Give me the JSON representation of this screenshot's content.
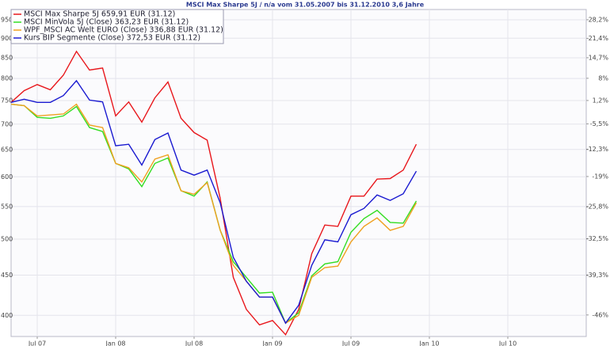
{
  "chart_data": {
    "type": "line",
    "title": "MSCI Max Sharpe 5J / n/a vom 31.05.2007 bis 31.12.2010 3,6 Jahre",
    "x": [
      "2007-05",
      "2007-06",
      "2007-07",
      "2007-08",
      "2007-09",
      "2007-10",
      "2007-11",
      "2007-12",
      "2008-01",
      "2008-02",
      "2008-03",
      "2008-04",
      "2008-05",
      "2008-06",
      "2008-07",
      "2008-08",
      "2008-09",
      "2008-10",
      "2008-11",
      "2008-12",
      "2009-01",
      "2009-02",
      "2009-03",
      "2009-04",
      "2009-05",
      "2009-06",
      "2009-07",
      "2009-08",
      "2009-09",
      "2009-10",
      "2009-11",
      "2009-12"
    ],
    "xlim": [
      "2007-05",
      "2011-01"
    ],
    "xticks": [
      {
        "value": "2007-07",
        "label": "Jul 07"
      },
      {
        "value": "2008-01",
        "label": "Jan 08"
      },
      {
        "value": "2008-07",
        "label": "Jul 08"
      },
      {
        "value": "2009-01",
        "label": "Jan 09"
      },
      {
        "value": "2009-07",
        "label": "Jul 09"
      },
      {
        "value": "2010-01",
        "label": "Jan 10"
      },
      {
        "value": "2010-07",
        "label": "Jul 10"
      }
    ],
    "ylim": [
      376,
      979
    ],
    "ylog": true,
    "yticks": [
      400,
      450,
      500,
      550,
      600,
      650,
      700,
      750,
      800,
      850,
      900,
      950
    ],
    "y2lim": [
      -49.3,
      32.1
    ],
    "y2log": true,
    "y2ticks": [
      {
        "value": -46,
        "label": "-46%"
      },
      {
        "value": -39.3,
        "label": "-39,3%"
      },
      {
        "value": -32.5,
        "label": "-32,5%"
      },
      {
        "value": -25.8,
        "label": "-25,8%"
      },
      {
        "value": -19,
        "label": "-19%"
      },
      {
        "value": -12.3,
        "label": "-12,3%"
      },
      {
        "value": -5.5,
        "label": "-5,5%"
      },
      {
        "value": 1.2,
        "label": "1,2%"
      },
      {
        "value": 8,
        "label": "8%"
      },
      {
        "value": 14.7,
        "label": "14,7%"
      },
      {
        "value": 21.4,
        "label": "21,4%"
      },
      {
        "value": 28.2,
        "label": "28,2%"
      }
    ],
    "grid": true,
    "legend": "top-left",
    "series": [
      {
        "name": "MSCI Max Sharpe 5J 659,91 EUR (31.12)",
        "color": "#e8171c",
        "values": [
          746,
          772,
          786,
          774,
          808,
          866,
          820,
          825,
          717,
          747,
          704,
          756,
          792,
          712,
          683,
          668,
          563,
          447,
          407,
          389,
          394,
          378,
          407,
          479,
          521,
          519,
          567,
          567,
          596,
          597,
          612,
          660
        ]
      },
      {
        "name": "MSCI MinVola 5J (Close) 363,23 EUR (31.12)",
        "color": "#33dd22",
        "values": [
          742,
          739,
          714,
          712,
          717,
          737,
          693,
          685,
          624,
          614,
          583,
          624,
          634,
          576,
          567,
          591,
          513,
          468,
          447,
          427,
          428,
          391,
          403,
          449,
          465,
          468,
          510,
          531,
          544,
          525,
          524,
          559
        ]
      },
      {
        "name": "WPF_MSCI AC Welt EURO (Close) 336,88 EUR (31.12)",
        "color": "#f0a020",
        "values": [
          742,
          739,
          717,
          719,
          721,
          742,
          698,
          693,
          624,
          616,
          591,
          632,
          640,
          576,
          570,
          590,
          513,
          463,
          442,
          422,
          422,
          391,
          400,
          447,
          460,
          462,
          496,
          519,
          532,
          513,
          519,
          556
        ]
      },
      {
        "name": "Kurs BIP Segmente (Close) 372,53 EUR (31.12)",
        "color": "#1a1ad0",
        "values": [
          746,
          753,
          746,
          746,
          761,
          795,
          751,
          747,
          657,
          660,
          621,
          669,
          682,
          612,
          603,
          612,
          556,
          474,
          442,
          422,
          422,
          391,
          412,
          463,
          499,
          496,
          537,
          547,
          569,
          560,
          571,
          610
        ]
      }
    ]
  }
}
